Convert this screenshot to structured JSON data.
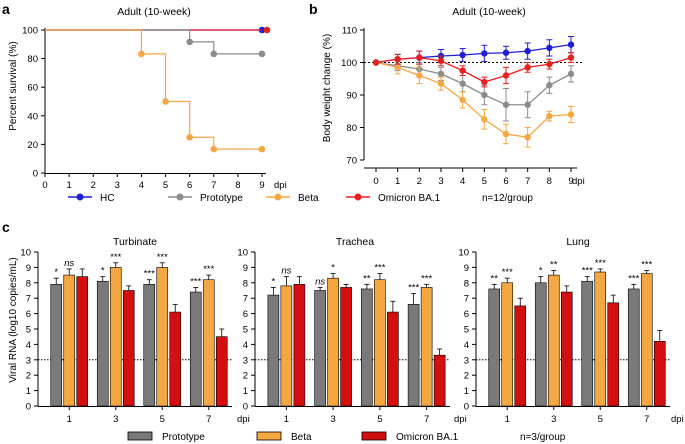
{
  "figure": {
    "panel_labels": [
      "a",
      "b",
      "c"
    ],
    "legend_top": {
      "items": [
        {
          "label": "HC",
          "color": "#1f1fd6"
        },
        {
          "label": "Prototype",
          "color": "#8c8c8c"
        },
        {
          "label": "Beta",
          "color": "#f5a742"
        },
        {
          "label": "Omicron BA.1",
          "color": "#e82020"
        }
      ],
      "note": "n=12/group"
    },
    "legend_bottom": {
      "items": [
        {
          "label": "Prototype",
          "color": "#7a7a7a"
        },
        {
          "label": "Beta",
          "color": "#f5a742"
        },
        {
          "label": "Omicron BA.1",
          "color": "#d40f0f"
        }
      ],
      "note": "n=3/group"
    },
    "dpi_suffix": "dpi"
  },
  "chart_data": [
    {
      "panel": "a",
      "type": "line",
      "style": "survival-step",
      "title": "Adult (10-week)",
      "xlabel": "",
      "ylabel": "Percent survival (%)",
      "xlim": [
        0,
        9
      ],
      "ylim": [
        0,
        100
      ],
      "xticks": [
        0,
        1,
        2,
        3,
        4,
        5,
        6,
        7,
        8,
        9
      ],
      "yticks": [
        0,
        20,
        40,
        60,
        80,
        100
      ],
      "series": [
        {
          "name": "HC",
          "color": "#1f1fd6",
          "x": [
            0,
            9
          ],
          "y": [
            100,
            100
          ],
          "end_marker": true
        },
        {
          "name": "Omicron BA.1",
          "color": "#e82020",
          "x": [
            0,
            9
          ],
          "y": [
            100,
            100
          ],
          "end_marker": true
        },
        {
          "name": "Prototype",
          "color": "#8c8c8c",
          "x": [
            0,
            6,
            7,
            9
          ],
          "y": [
            100,
            91.7,
            83.3,
            83.3
          ]
        },
        {
          "name": "Beta",
          "color": "#f5a742",
          "x": [
            0,
            4,
            5,
            6,
            7,
            9
          ],
          "y": [
            100,
            83.3,
            50,
            25,
            16.7,
            16.7
          ]
        }
      ]
    },
    {
      "panel": "b",
      "type": "line",
      "style": "errorbar",
      "title": "Adult (10-week)",
      "xlabel": "",
      "ylabel": "Body weight change (%)",
      "xlim": [
        0,
        9
      ],
      "ylim": [
        70,
        110
      ],
      "xticks": [
        0,
        1,
        2,
        3,
        4,
        5,
        6,
        7,
        8,
        9
      ],
      "yticks": [
        70,
        80,
        90,
        100,
        110
      ],
      "reference_line": 100,
      "x": [
        0,
        1,
        2,
        3,
        4,
        5,
        6,
        7,
        8,
        9
      ],
      "series": [
        {
          "name": "HC",
          "color": "#1f1fd6",
          "values": [
            100,
            101,
            101.5,
            102,
            102.3,
            102.8,
            103,
            103.5,
            104.5,
            105.5
          ],
          "errors": [
            0,
            1.5,
            2,
            2,
            2,
            2.5,
            2,
            2.5,
            2.5,
            2.5
          ]
        },
        {
          "name": "Prototype",
          "color": "#8c8c8c",
          "values": [
            100,
            99,
            98,
            96.5,
            93.5,
            90,
            87,
            87,
            93,
            96.5
          ],
          "errors": [
            0,
            1.5,
            2,
            2,
            2.5,
            3,
            5,
            4,
            2.5,
            2.5
          ]
        },
        {
          "name": "Beta",
          "color": "#f5a742",
          "values": [
            100,
            98.5,
            96,
            93.5,
            88.5,
            82.5,
            78,
            77,
            83.5,
            84
          ],
          "errors": [
            0,
            2,
            2.5,
            2,
            2.5,
            3,
            3,
            3,
            1.5,
            2.5
          ]
        },
        {
          "name": "Omicron BA.1",
          "color": "#e82020",
          "values": [
            100,
            101,
            101.5,
            100.5,
            97.5,
            94,
            96,
            98.5,
            99.5,
            101.5
          ],
          "errors": [
            0,
            1.5,
            2,
            1.5,
            1.5,
            1.5,
            2.5,
            1.5,
            1.5,
            1.5
          ]
        }
      ]
    },
    {
      "panel": "c",
      "type": "bar",
      "title": "Turbinate",
      "ylabel": "Viral RNA (log10 copies/mL)",
      "ylim": [
        0,
        10
      ],
      "yticks": [
        0,
        1,
        2,
        3,
        4,
        5,
        6,
        7,
        8,
        9,
        10
      ],
      "threshold": 3,
      "categories": [
        "1",
        "3",
        "5",
        "7"
      ],
      "series": [
        {
          "name": "Prototype",
          "color": "#7a7a7a",
          "values": [
            7.9,
            8.1,
            7.9,
            7.4
          ],
          "errors": [
            0.4,
            0.3,
            0.3,
            0.3
          ]
        },
        {
          "name": "Beta",
          "color": "#f5a742",
          "values": [
            8.5,
            9.0,
            9.0,
            8.2
          ],
          "errors": [
            0.4,
            0.3,
            0.3,
            0.3
          ]
        },
        {
          "name": "Omicron BA.1",
          "color": "#d40f0f",
          "values": [
            8.4,
            7.5,
            6.1,
            4.5
          ],
          "errors": [
            0.5,
            0.3,
            0.5,
            0.5
          ]
        }
      ],
      "annotations": [
        [
          "*",
          "ns",
          null
        ],
        [
          "*",
          "***",
          null
        ],
        [
          "***",
          "***",
          null
        ],
        [
          "***",
          "***",
          null
        ]
      ]
    },
    {
      "panel": "c",
      "type": "bar",
      "title": "Trachea",
      "ylabel": "",
      "ylim": [
        0,
        10
      ],
      "yticks": [
        0,
        1,
        2,
        3,
        4,
        5,
        6,
        7,
        8,
        9,
        10
      ],
      "threshold": 3,
      "categories": [
        "1",
        "3",
        "5",
        "7"
      ],
      "series": [
        {
          "name": "Prototype",
          "color": "#7a7a7a",
          "values": [
            7.2,
            7.5,
            7.6,
            6.6
          ],
          "errors": [
            0.5,
            0.2,
            0.3,
            0.7
          ]
        },
        {
          "name": "Beta",
          "color": "#f5a742",
          "values": [
            7.8,
            8.3,
            8.2,
            7.7
          ],
          "errors": [
            0.6,
            0.3,
            0.4,
            0.2
          ]
        },
        {
          "name": "Omicron BA.1",
          "color": "#d40f0f",
          "values": [
            7.9,
            7.7,
            6.1,
            3.3
          ],
          "errors": [
            0.5,
            0.2,
            0.7,
            0.4
          ]
        }
      ],
      "annotations": [
        [
          "*",
          "ns",
          null
        ],
        [
          "ns",
          "*",
          null
        ],
        [
          "**",
          "***",
          null
        ],
        [
          "***",
          "***",
          null
        ]
      ]
    },
    {
      "panel": "c",
      "type": "bar",
      "title": "Lung",
      "ylabel": "",
      "ylim": [
        0,
        10
      ],
      "yticks": [
        0,
        1,
        2,
        3,
        4,
        5,
        6,
        7,
        8,
        9,
        10
      ],
      "threshold": 3,
      "categories": [
        "1",
        "3",
        "5",
        "7"
      ],
      "series": [
        {
          "name": "Prototype",
          "color": "#7a7a7a",
          "values": [
            7.6,
            8.0,
            8.1,
            7.6
          ],
          "errors": [
            0.3,
            0.4,
            0.3,
            0.3
          ]
        },
        {
          "name": "Beta",
          "color": "#f5a742",
          "values": [
            8.0,
            8.5,
            8.7,
            8.6
          ],
          "errors": [
            0.3,
            0.3,
            0.2,
            0.2
          ]
        },
        {
          "name": "Omicron BA.1",
          "color": "#d40f0f",
          "values": [
            6.5,
            7.4,
            6.7,
            4.2
          ],
          "errors": [
            0.5,
            0.4,
            0.5,
            0.7
          ]
        }
      ],
      "annotations": [
        [
          "**",
          "***",
          null
        ],
        [
          "*",
          "**",
          null
        ],
        [
          "***",
          "***",
          null
        ],
        [
          "***",
          "***",
          null
        ]
      ]
    }
  ]
}
